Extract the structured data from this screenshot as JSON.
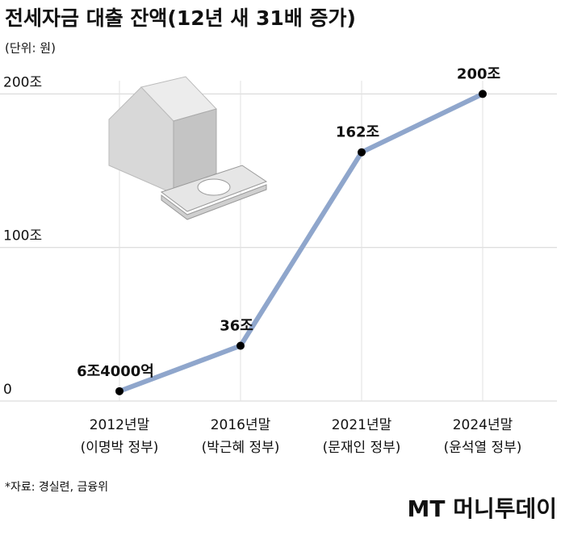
{
  "chart_data": {
    "type": "line",
    "title": "전세자금 대출 잔액(12년 새 31배 증가)",
    "subtitle": "(단위: 원)",
    "categories": [
      "2012년말",
      "2016년말",
      "2021년말",
      "2024년말"
    ],
    "category_notes": [
      "(이명박 정부)",
      "(박근혜 정부)",
      "(문재인 정부)",
      "(윤석열 정부)"
    ],
    "values": [
      6.4,
      36,
      162,
      200
    ],
    "value_labels": [
      "6조4000억",
      "36조",
      "162조",
      "200조"
    ],
    "color": "#8fa6cc",
    "ylim": [
      0,
      206
    ],
    "yticks": [
      {
        "value": 0,
        "label": "0"
      },
      {
        "value": 100,
        "label": "100조"
      },
      {
        "value": 200,
        "label": "200조"
      }
    ],
    "grid": true,
    "source": "*자료: 경실련, 금융위",
    "watermark": "MT 머니투데이"
  }
}
